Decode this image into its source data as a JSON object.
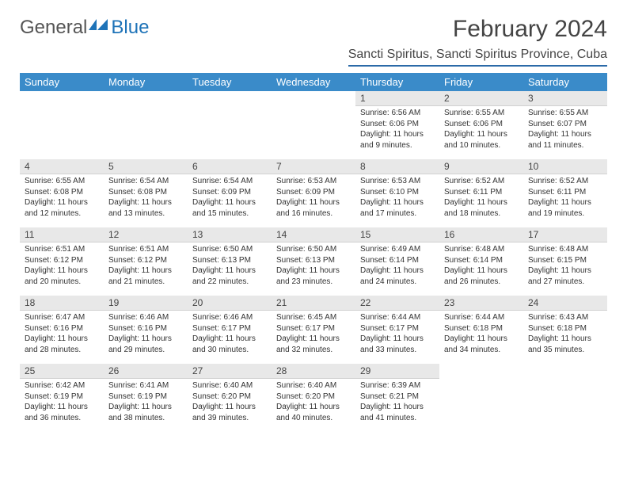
{
  "brand": {
    "part1": "General",
    "part2": "Blue"
  },
  "title": "February 2024",
  "location": "Sancti Spiritus, Sancti Spiritus Province, Cuba",
  "colors": {
    "header_bg": "#3a8bc9",
    "header_text": "#ffffff",
    "daynum_bg": "#e8e8e8",
    "text": "#333333",
    "accent": "#2b6aa8",
    "brand_blue": "#1e73b8"
  },
  "daynames": [
    "Sunday",
    "Monday",
    "Tuesday",
    "Wednesday",
    "Thursday",
    "Friday",
    "Saturday"
  ],
  "weeks": [
    [
      null,
      null,
      null,
      null,
      {
        "n": "1",
        "sr": "6:56 AM",
        "ss": "6:06 PM",
        "dl": "11 hours and 9 minutes."
      },
      {
        "n": "2",
        "sr": "6:55 AM",
        "ss": "6:06 PM",
        "dl": "11 hours and 10 minutes."
      },
      {
        "n": "3",
        "sr": "6:55 AM",
        "ss": "6:07 PM",
        "dl": "11 hours and 11 minutes."
      }
    ],
    [
      {
        "n": "4",
        "sr": "6:55 AM",
        "ss": "6:08 PM",
        "dl": "11 hours and 12 minutes."
      },
      {
        "n": "5",
        "sr": "6:54 AM",
        "ss": "6:08 PM",
        "dl": "11 hours and 13 minutes."
      },
      {
        "n": "6",
        "sr": "6:54 AM",
        "ss": "6:09 PM",
        "dl": "11 hours and 15 minutes."
      },
      {
        "n": "7",
        "sr": "6:53 AM",
        "ss": "6:09 PM",
        "dl": "11 hours and 16 minutes."
      },
      {
        "n": "8",
        "sr": "6:53 AM",
        "ss": "6:10 PM",
        "dl": "11 hours and 17 minutes."
      },
      {
        "n": "9",
        "sr": "6:52 AM",
        "ss": "6:11 PM",
        "dl": "11 hours and 18 minutes."
      },
      {
        "n": "10",
        "sr": "6:52 AM",
        "ss": "6:11 PM",
        "dl": "11 hours and 19 minutes."
      }
    ],
    [
      {
        "n": "11",
        "sr": "6:51 AM",
        "ss": "6:12 PM",
        "dl": "11 hours and 20 minutes."
      },
      {
        "n": "12",
        "sr": "6:51 AM",
        "ss": "6:12 PM",
        "dl": "11 hours and 21 minutes."
      },
      {
        "n": "13",
        "sr": "6:50 AM",
        "ss": "6:13 PM",
        "dl": "11 hours and 22 minutes."
      },
      {
        "n": "14",
        "sr": "6:50 AM",
        "ss": "6:13 PM",
        "dl": "11 hours and 23 minutes."
      },
      {
        "n": "15",
        "sr": "6:49 AM",
        "ss": "6:14 PM",
        "dl": "11 hours and 24 minutes."
      },
      {
        "n": "16",
        "sr": "6:48 AM",
        "ss": "6:14 PM",
        "dl": "11 hours and 26 minutes."
      },
      {
        "n": "17",
        "sr": "6:48 AM",
        "ss": "6:15 PM",
        "dl": "11 hours and 27 minutes."
      }
    ],
    [
      {
        "n": "18",
        "sr": "6:47 AM",
        "ss": "6:16 PM",
        "dl": "11 hours and 28 minutes."
      },
      {
        "n": "19",
        "sr": "6:46 AM",
        "ss": "6:16 PM",
        "dl": "11 hours and 29 minutes."
      },
      {
        "n": "20",
        "sr": "6:46 AM",
        "ss": "6:17 PM",
        "dl": "11 hours and 30 minutes."
      },
      {
        "n": "21",
        "sr": "6:45 AM",
        "ss": "6:17 PM",
        "dl": "11 hours and 32 minutes."
      },
      {
        "n": "22",
        "sr": "6:44 AM",
        "ss": "6:17 PM",
        "dl": "11 hours and 33 minutes."
      },
      {
        "n": "23",
        "sr": "6:44 AM",
        "ss": "6:18 PM",
        "dl": "11 hours and 34 minutes."
      },
      {
        "n": "24",
        "sr": "6:43 AM",
        "ss": "6:18 PM",
        "dl": "11 hours and 35 minutes."
      }
    ],
    [
      {
        "n": "25",
        "sr": "6:42 AM",
        "ss": "6:19 PM",
        "dl": "11 hours and 36 minutes."
      },
      {
        "n": "26",
        "sr": "6:41 AM",
        "ss": "6:19 PM",
        "dl": "11 hours and 38 minutes."
      },
      {
        "n": "27",
        "sr": "6:40 AM",
        "ss": "6:20 PM",
        "dl": "11 hours and 39 minutes."
      },
      {
        "n": "28",
        "sr": "6:40 AM",
        "ss": "6:20 PM",
        "dl": "11 hours and 40 minutes."
      },
      {
        "n": "29",
        "sr": "6:39 AM",
        "ss": "6:21 PM",
        "dl": "11 hours and 41 minutes."
      },
      null,
      null
    ]
  ],
  "labels": {
    "sunrise": "Sunrise:",
    "sunset": "Sunset:",
    "daylight": "Daylight:"
  }
}
